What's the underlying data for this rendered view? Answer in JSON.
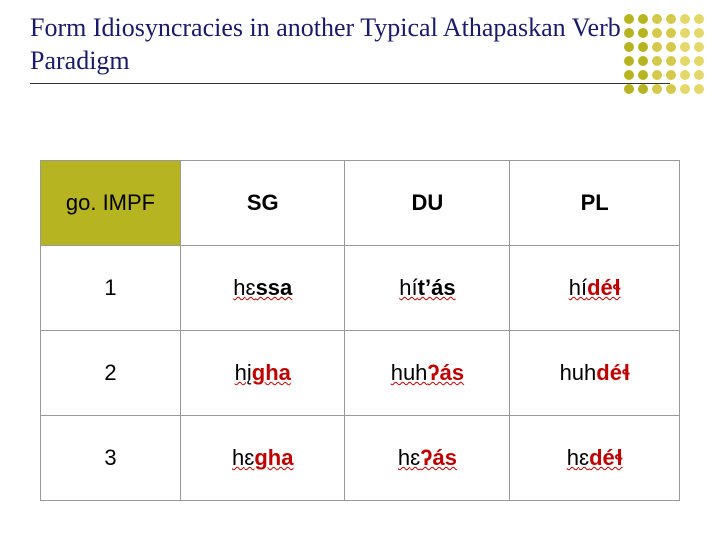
{
  "title": "Form Idiosyncracies in another Typical Athapaskan Verb Paradigm",
  "dot_colors": [
    "#b7b422",
    "#b7b422",
    "#d4c94a",
    "#d4c94a",
    "#e4d86a",
    "#e4d86a"
  ],
  "headers": {
    "corner": "go. IMPF",
    "sg": "SG",
    "du": "DU",
    "pl": "PL"
  },
  "rows": [
    {
      "label": "1",
      "sg": {
        "pre": "h",
        "mid": "ɛ",
        "suf": "ssa",
        "suf_red": false
      },
      "du": {
        "pre": "hí",
        "suf": "t’ás",
        "suf_red": false
      },
      "pl": {
        "pre": "hí",
        "suf": "déɬ",
        "suf_red": true
      }
    },
    {
      "label": "2",
      "sg": {
        "pre": "hį",
        "suf": "gha",
        "suf_red": true
      },
      "du": {
        "pre": "huh",
        "suf": "ʔás",
        "suf_red": true
      },
      "pl": {
        "pre": "huh",
        "suf": "déɬ",
        "suf_red": true,
        "no_wavy": true
      }
    },
    {
      "label": "3",
      "sg": {
        "pre": "h",
        "mid": "ɛ",
        "suf": "gha",
        "suf_red": true
      },
      "du": {
        "pre": "h",
        "mid": "ɛ",
        "suf": "ʔás",
        "suf_red": true
      },
      "pl": {
        "pre": "h",
        "mid": "ɛ",
        "suf": "déɬ",
        "suf_red": true
      }
    }
  ]
}
